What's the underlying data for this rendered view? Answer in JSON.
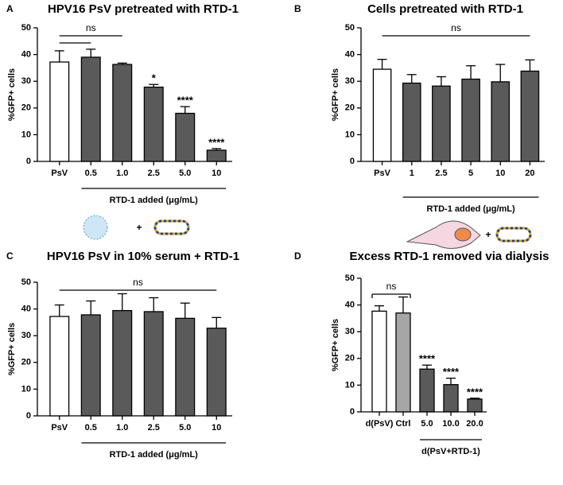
{
  "chart_data": [
    {
      "type": "bar",
      "panel": "A",
      "title": "HPV16 PsV pretreated with RTD-1",
      "ylabel": "%GFP+ cells",
      "categories": [
        "PsV",
        "0.5",
        "1.0",
        "2.5",
        "5.0",
        "10"
      ],
      "values": [
        37.2,
        39,
        36.3,
        27.8,
        18,
        4.2
      ],
      "errors": [
        4.2,
        3,
        0.5,
        1,
        2.5,
        0.6
      ],
      "colors": [
        "#ffffff",
        "#5a5a5a",
        "#5a5a5a",
        "#5a5a5a",
        "#5a5a5a",
        "#5a5a5a"
      ],
      "significance": [
        null,
        null,
        null,
        "*",
        "****",
        "****"
      ],
      "ns_label": "ns",
      "group_label": "RTD-1 added (μg/mL)",
      "ylim": [
        0,
        50
      ],
      "yticks": [
        0,
        10,
        20,
        30,
        40,
        50
      ]
    },
    {
      "type": "bar",
      "panel": "B",
      "title": "Cells pretreated with RTD-1",
      "ylabel": "%GFP+ cells",
      "categories": [
        "PsV",
        "1",
        "2.5",
        "5",
        "10",
        "20"
      ],
      "values": [
        34.5,
        29.3,
        28.2,
        30.8,
        29.8,
        33.8
      ],
      "errors": [
        3.7,
        3.2,
        3.5,
        5,
        6.5,
        4.2
      ],
      "colors": [
        "#ffffff",
        "#5a5a5a",
        "#5a5a5a",
        "#5a5a5a",
        "#5a5a5a",
        "#5a5a5a"
      ],
      "ns_label": "ns",
      "group_label": "RTD-1 added (μg/mL)",
      "ylim": [
        0,
        50
      ],
      "yticks": [
        0,
        10,
        20,
        30,
        40,
        50
      ]
    },
    {
      "type": "bar",
      "panel": "C",
      "title": "HPV16 PsV in 10% serum + RTD-1",
      "ylabel": "%GFP+ cells",
      "categories": [
        "PsV",
        "0.5",
        "1.0",
        "2.5",
        "5.0",
        "10"
      ],
      "values": [
        37.2,
        37.8,
        39.4,
        39,
        36.5,
        32.8
      ],
      "errors": [
        4.3,
        5.2,
        6.3,
        5.2,
        5.7,
        4
      ],
      "colors": [
        "#ffffff",
        "#5a5a5a",
        "#5a5a5a",
        "#5a5a5a",
        "#5a5a5a",
        "#5a5a5a"
      ],
      "ns_label": "ns",
      "group_label": "RTD-1 added (μg/mL)",
      "ylim": [
        0,
        50
      ],
      "yticks": [
        0,
        10,
        20,
        30,
        40,
        50
      ]
    },
    {
      "type": "bar",
      "panel": "D",
      "title": "Excess RTD-1 removed via dialysis",
      "ylabel": "%GFP+ cells",
      "categories": [
        "d(PsV)",
        "Ctrl",
        "5.0",
        "10.0",
        "20.0"
      ],
      "values": [
        37.7,
        37,
        16,
        10.2,
        4.8
      ],
      "errors": [
        2,
        6,
        1.5,
        2.4,
        0.3
      ],
      "colors": [
        "#ffffff",
        "#a6a6a6",
        "#5a5a5a",
        "#5a5a5a",
        "#5a5a5a"
      ],
      "significance": [
        null,
        null,
        "****",
        "****",
        "****"
      ],
      "ns_label": "ns",
      "group_label": "d(PsV+RTD-1)",
      "ylim": [
        0,
        50
      ],
      "yticks": [
        0,
        10,
        20,
        30,
        40,
        50
      ]
    }
  ]
}
